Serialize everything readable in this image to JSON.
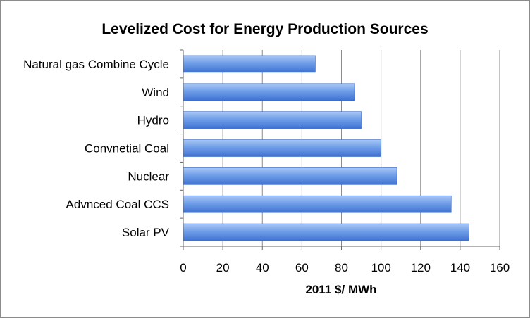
{
  "chart_data": {
    "type": "bar",
    "orientation": "horizontal",
    "title": "Levelized Cost for Energy Production Sources",
    "xlabel": "2011 $/ MWh",
    "ylabel": "",
    "categories": [
      "Natural gas Combine Cycle",
      "Wind",
      "Hydro",
      "Convnetial Coal",
      "Nuclear",
      "Advnced Coal CCS",
      "Solar PV"
    ],
    "values": [
      66.8,
      86.6,
      90.0,
      100.0,
      108.0,
      135.5,
      144.5
    ],
    "xlim": [
      0,
      160
    ],
    "xticks": [
      0,
      20,
      40,
      60,
      80,
      100,
      120,
      140,
      160
    ],
    "grid": "vertical",
    "legend": "none",
    "bar_color": "#5b8fe0"
  }
}
